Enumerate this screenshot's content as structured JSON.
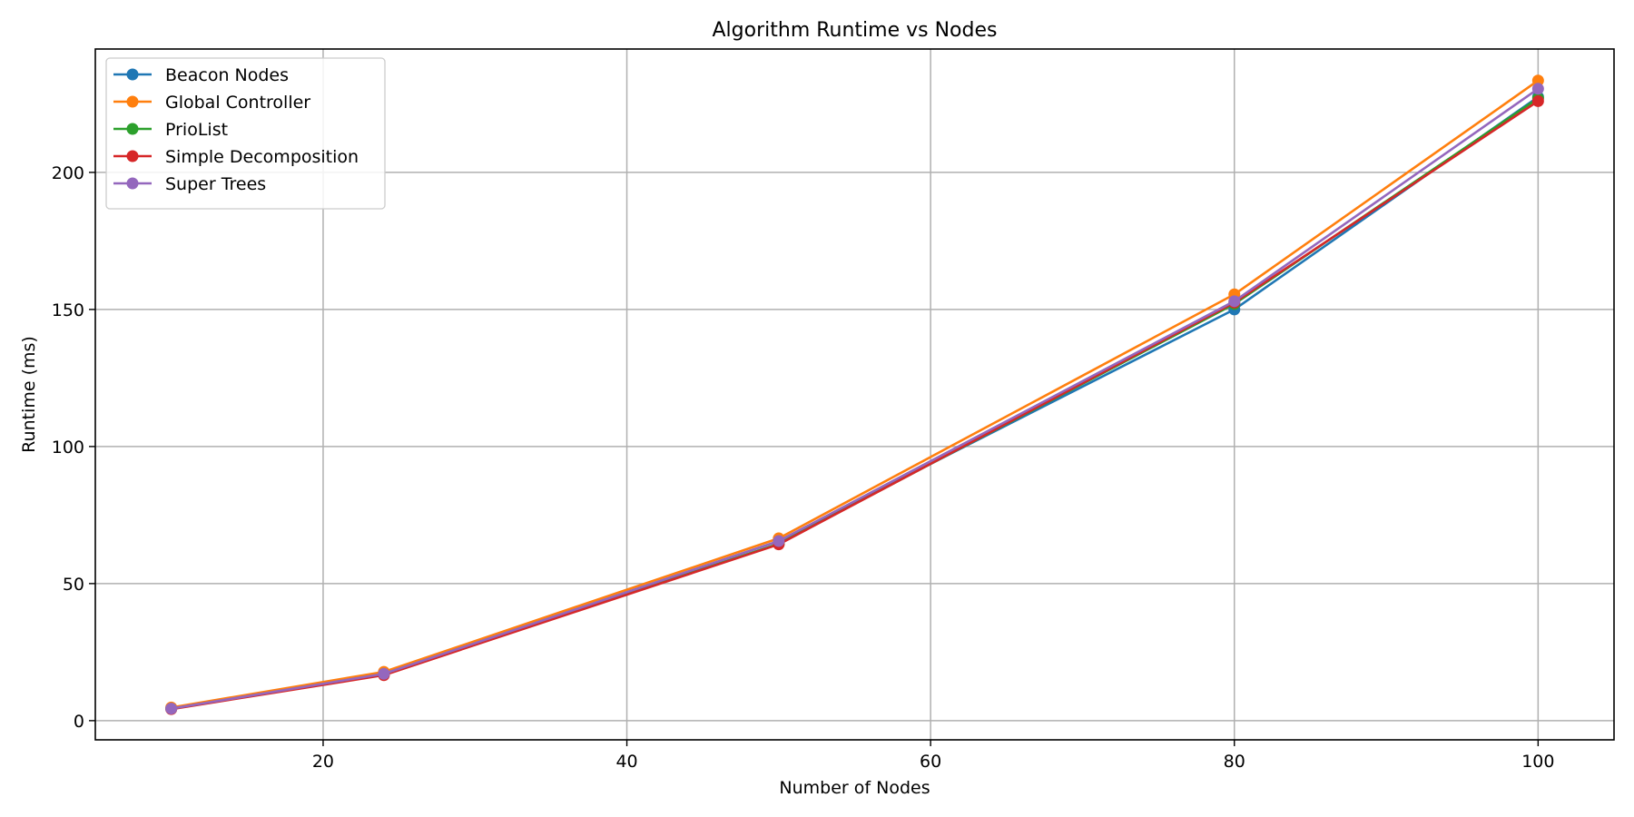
{
  "chart_data": {
    "type": "line",
    "title": "Algorithm Runtime vs Nodes",
    "xlabel": "Number of Nodes",
    "ylabel": "Runtime (ms)",
    "x": [
      10,
      24,
      50,
      80,
      100
    ],
    "xlim": [
      5,
      105
    ],
    "ylim": [
      -7,
      245
    ],
    "xticks": [
      20,
      40,
      60,
      80,
      100
    ],
    "yticks": [
      0,
      50,
      100,
      150,
      200
    ],
    "grid": true,
    "legend_position": "upper-left",
    "series": [
      {
        "name": "Beacon Nodes",
        "color": "#1f77b4",
        "values": [
          4.5,
          17.0,
          65.5,
          150.0,
          227.5
        ]
      },
      {
        "name": "Global Controller",
        "color": "#ff7f0e",
        "values": [
          4.8,
          17.8,
          66.5,
          155.5,
          233.5
        ]
      },
      {
        "name": "PrioList",
        "color": "#2ca02c",
        "values": [
          4.3,
          16.8,
          64.5,
          152.0,
          227.0
        ]
      },
      {
        "name": "Simple Decomposition",
        "color": "#d62728",
        "values": [
          4.2,
          16.6,
          64.3,
          152.5,
          226.0
        ]
      },
      {
        "name": "Super Trees",
        "color": "#9467bd",
        "values": [
          4.4,
          17.1,
          65.5,
          153.0,
          230.5
        ]
      }
    ]
  }
}
